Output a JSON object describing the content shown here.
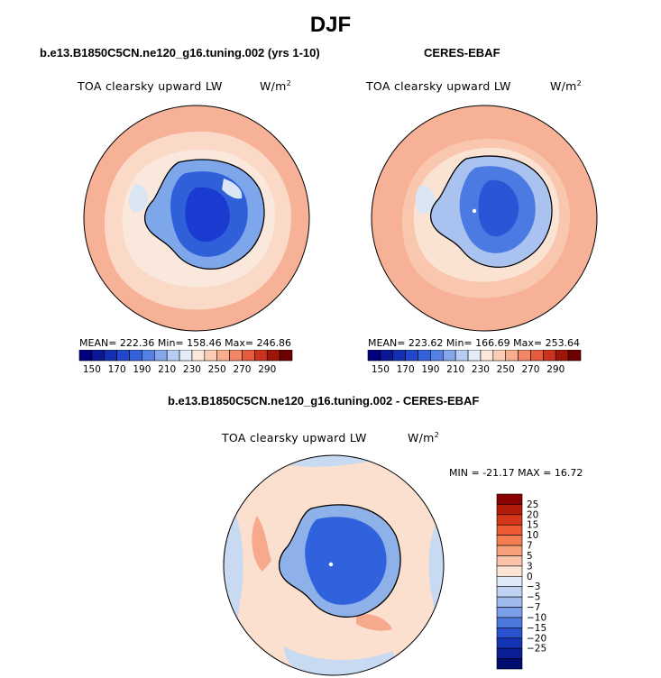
{
  "title": "DJF",
  "colors": {
    "ocean_warm": "#f6b196",
    "ocean_light": "#fad9c6",
    "coast": "#fbe8dc",
    "ice_light": "#dbe6f5",
    "ice_mid": "#7ea6ea",
    "ice_dark": "#2f5fd9",
    "ice_core": "#1b3ad0",
    "diff_neg_light": "#c7daf2",
    "diff_neg_mid": "#8fb1ea",
    "diff_neg_dark": "#2f62dc",
    "diff_pos_light": "#fbdfcf",
    "diff_pos_mid": "#f6a98c"
  },
  "chart_data": [
    {
      "type": "heatmap",
      "title": "b.e13.B1850C5CN.ne120_g16.tuning.002 (yrs 1-10)",
      "variable": "TOA clearsky upward LW",
      "units": "W/m",
      "units_exp": "2",
      "stats": {
        "label": "MEAN= 222.36   Min= 158.46   Max= 246.86",
        "mean": 222.36,
        "min": 158.46,
        "max": 246.86
      },
      "colorbar": {
        "ticks": [
          "150",
          "170",
          "190",
          "210",
          "230",
          "250",
          "270",
          "290"
        ],
        "colors": [
          "#00007f",
          "#0a1898",
          "#1330b2",
          "#2148cc",
          "#3262da",
          "#5580e4",
          "#86a6ec",
          "#b8cdf4",
          "#e4ecf8",
          "#fde7da",
          "#fbcdb5",
          "#f8ad8d",
          "#f28767",
          "#e55c3f",
          "#c8321e",
          "#9d1408",
          "#6f0000"
        ]
      }
    },
    {
      "type": "heatmap",
      "title": "CERES-EBAF",
      "variable": "TOA clearsky upward LW",
      "units": "W/m",
      "units_exp": "2",
      "stats": {
        "label": "MEAN= 223.62   Min= 166.69   Max= 253.64",
        "mean": 223.62,
        "min": 166.69,
        "max": 253.64
      },
      "colorbar": {
        "ticks": [
          "150",
          "170",
          "190",
          "210",
          "230",
          "250",
          "270",
          "290"
        ],
        "colors": [
          "#00007f",
          "#0a1898",
          "#1330b2",
          "#2148cc",
          "#3262da",
          "#5580e4",
          "#86a6ec",
          "#b8cdf4",
          "#e4ecf8",
          "#fde7da",
          "#fbcdb5",
          "#f8ad8d",
          "#f28767",
          "#e55c3f",
          "#c8321e",
          "#9d1408",
          "#6f0000"
        ]
      }
    },
    {
      "type": "heatmap",
      "title": "b.e13.B1850C5CN.ne120_g16.tuning.002 - CERES-EBAF",
      "variable": "TOA clearsky upward LW",
      "units": "W/m",
      "units_exp": "2",
      "stats": {
        "label": "MIN = -21.17 MAX =  16.72",
        "min": -21.17,
        "max": 16.72
      },
      "colorbar": {
        "ticks": [
          "25",
          "20",
          "15",
          "10",
          "7",
          "5",
          "3",
          "0",
          "−3",
          "−5",
          "−7",
          "−10",
          "−15",
          "−20",
          "−25"
        ],
        "colors": [
          "#8b0000",
          "#b31b0a",
          "#d4371a",
          "#ec5a32",
          "#f47e52",
          "#f8a07c",
          "#fbc3a7",
          "#fde3d4",
          "#dfe9f7",
          "#bfd2f3",
          "#9fbbee",
          "#7a9ee8",
          "#4d78de",
          "#2a52d0",
          "#1434b5",
          "#0a1f95",
          "#000b70"
        ]
      }
    }
  ]
}
